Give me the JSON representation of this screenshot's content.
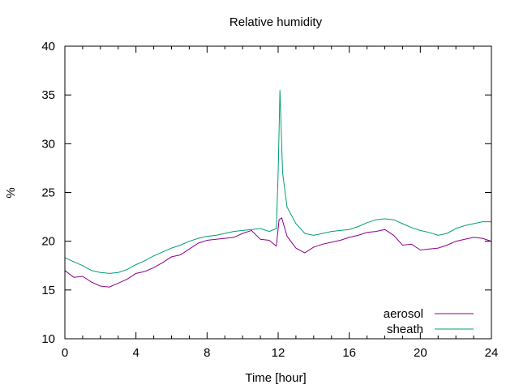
{
  "chart_data": {
    "type": "line",
    "title": "Relative humidity",
    "xlabel": "Time [hour]",
    "ylabel": "%",
    "xlim": [
      0,
      24
    ],
    "ylim": [
      10,
      40
    ],
    "xticks": [
      0,
      4,
      8,
      12,
      16,
      20,
      24
    ],
    "yticks": [
      10,
      15,
      20,
      25,
      30,
      35,
      40
    ],
    "grid": false,
    "legend_position": "bottom-right",
    "series": [
      {
        "name": "aerosol",
        "color": "#8b008b",
        "x": [
          0,
          0.5,
          1,
          1.5,
          2,
          2.5,
          3,
          3.5,
          4,
          4.5,
          5,
          5.5,
          6,
          6.5,
          7,
          7.5,
          8,
          8.5,
          9,
          9.5,
          10,
          10.5,
          11,
          11.5,
          11.9,
          12.05,
          12.2,
          12.5,
          13,
          13.5,
          14,
          14.5,
          15,
          15.5,
          16,
          16.5,
          17,
          17.5,
          18,
          18.5,
          19,
          19.5,
          20,
          20.5,
          21,
          21.5,
          22,
          22.5,
          23,
          23.5,
          24
        ],
        "y": [
          17.0,
          16.3,
          16.4,
          15.8,
          15.4,
          15.3,
          15.7,
          16.1,
          16.7,
          16.9,
          17.3,
          17.8,
          18.4,
          18.6,
          19.2,
          19.8,
          20.1,
          20.2,
          20.3,
          20.4,
          20.8,
          21.1,
          20.2,
          20.1,
          19.5,
          22.2,
          22.4,
          20.5,
          19.3,
          18.8,
          19.4,
          19.7,
          19.9,
          20.1,
          20.4,
          20.6,
          20.9,
          21.0,
          21.2,
          20.6,
          19.6,
          19.7,
          19.1,
          19.2,
          19.3,
          19.6,
          20.0,
          20.2,
          20.4,
          20.3,
          20.0
        ]
      },
      {
        "name": "sheath",
        "color": "#009e73",
        "x": [
          0,
          0.5,
          1,
          1.5,
          2,
          2.5,
          3,
          3.5,
          4,
          4.5,
          5,
          5.5,
          6,
          6.5,
          7,
          7.5,
          8,
          8.5,
          9,
          9.5,
          10,
          10.5,
          11,
          11.5,
          11.9,
          12.0,
          12.1,
          12.25,
          12.5,
          13,
          13.5,
          14,
          14.5,
          15,
          15.5,
          16,
          16.5,
          17,
          17.5,
          18,
          18.5,
          19,
          19.5,
          20,
          20.5,
          21,
          21.5,
          22,
          22.5,
          23,
          23.5,
          24
        ],
        "y": [
          18.3,
          17.9,
          17.5,
          17.0,
          16.8,
          16.7,
          16.8,
          17.1,
          17.6,
          18.0,
          18.5,
          18.9,
          19.3,
          19.6,
          20.0,
          20.3,
          20.5,
          20.6,
          20.8,
          21.0,
          21.1,
          21.2,
          21.3,
          21.0,
          21.3,
          27.0,
          35.5,
          27.0,
          23.5,
          21.8,
          20.8,
          20.6,
          20.8,
          21.0,
          21.1,
          21.2,
          21.5,
          21.9,
          22.2,
          22.3,
          22.2,
          21.8,
          21.4,
          21.1,
          20.9,
          20.6,
          20.8,
          21.3,
          21.6,
          21.8,
          22.0,
          22.0
        ]
      }
    ]
  }
}
